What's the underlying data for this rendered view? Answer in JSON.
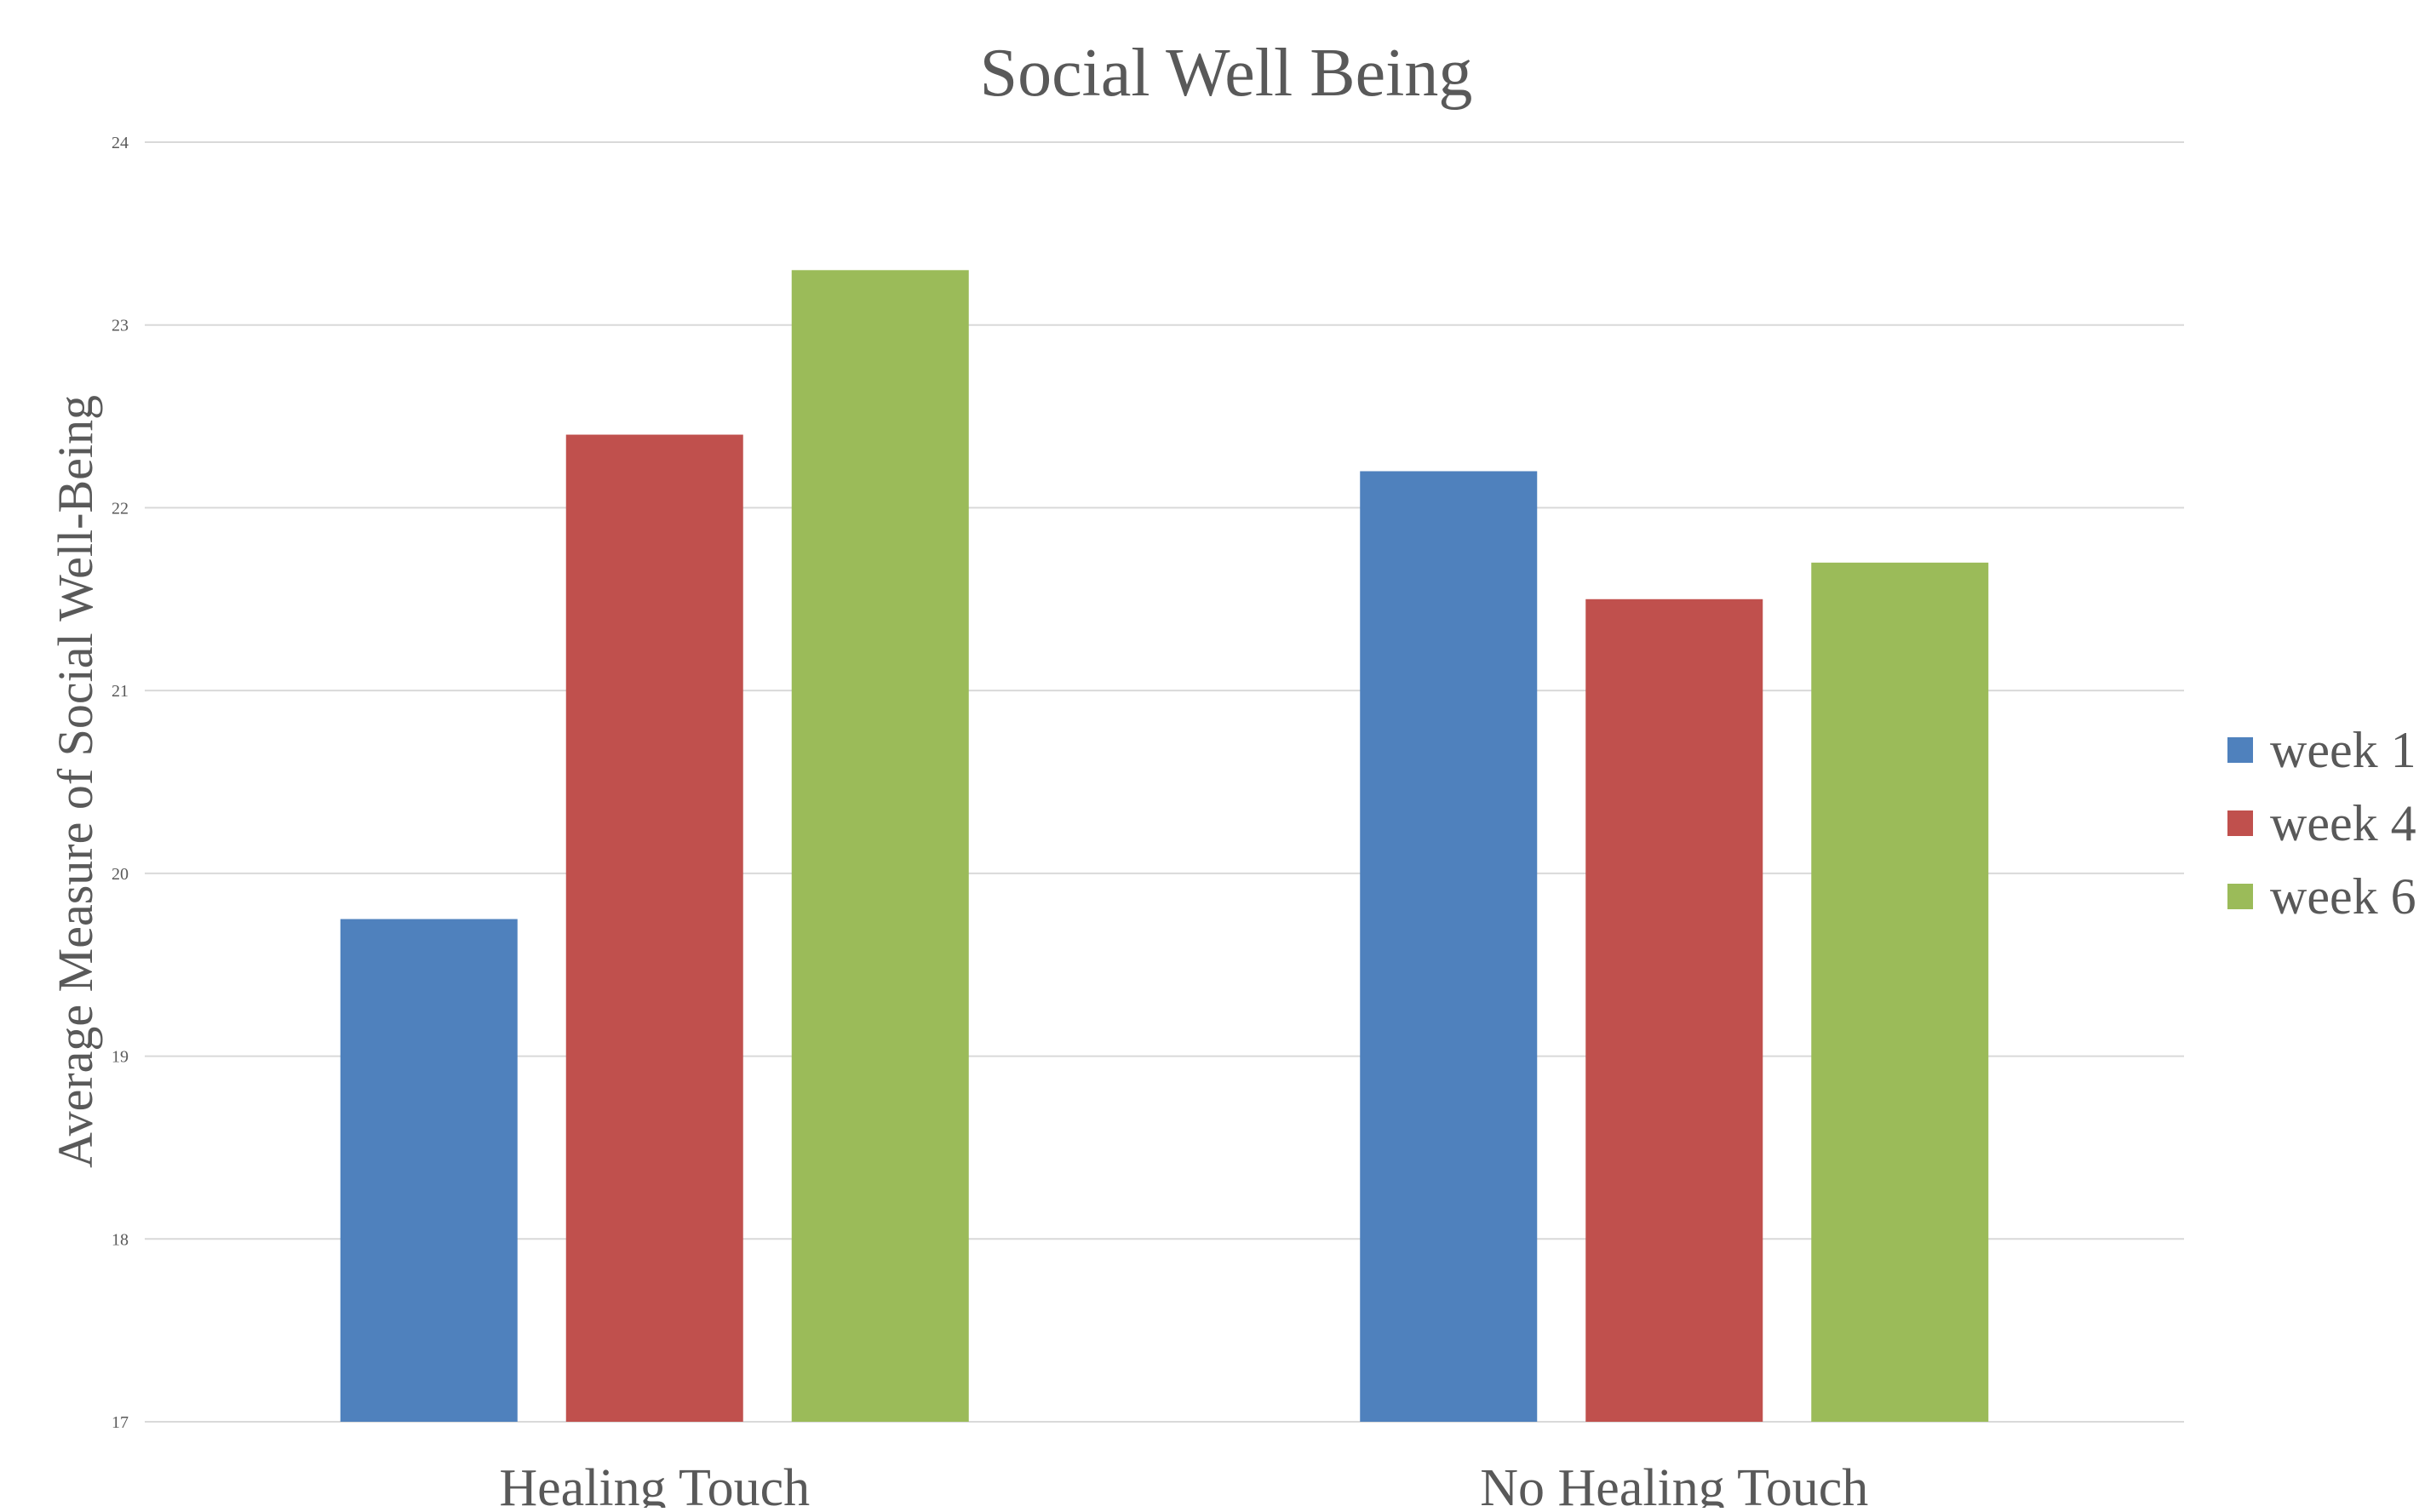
{
  "chart_data": {
    "type": "bar",
    "title": "Social Well Being",
    "xlabel": "",
    "ylabel": "Average Measure of Social Well-Being",
    "ylim": [
      17,
      24
    ],
    "yticks": [
      17,
      18,
      19,
      20,
      21,
      22,
      23,
      24
    ],
    "categories": [
      "Healing Touch",
      "No Healing Touch"
    ],
    "series": [
      {
        "name": "week 1",
        "color": "#4F81BD",
        "values": [
          19.75,
          22.2
        ]
      },
      {
        "name": "week 4",
        "color": "#C0504D",
        "values": [
          22.4,
          21.5
        ]
      },
      {
        "name": "week 6",
        "color": "#9BBB59",
        "values": [
          23.3,
          21.7
        ]
      }
    ],
    "grid": true,
    "legend": "right"
  }
}
